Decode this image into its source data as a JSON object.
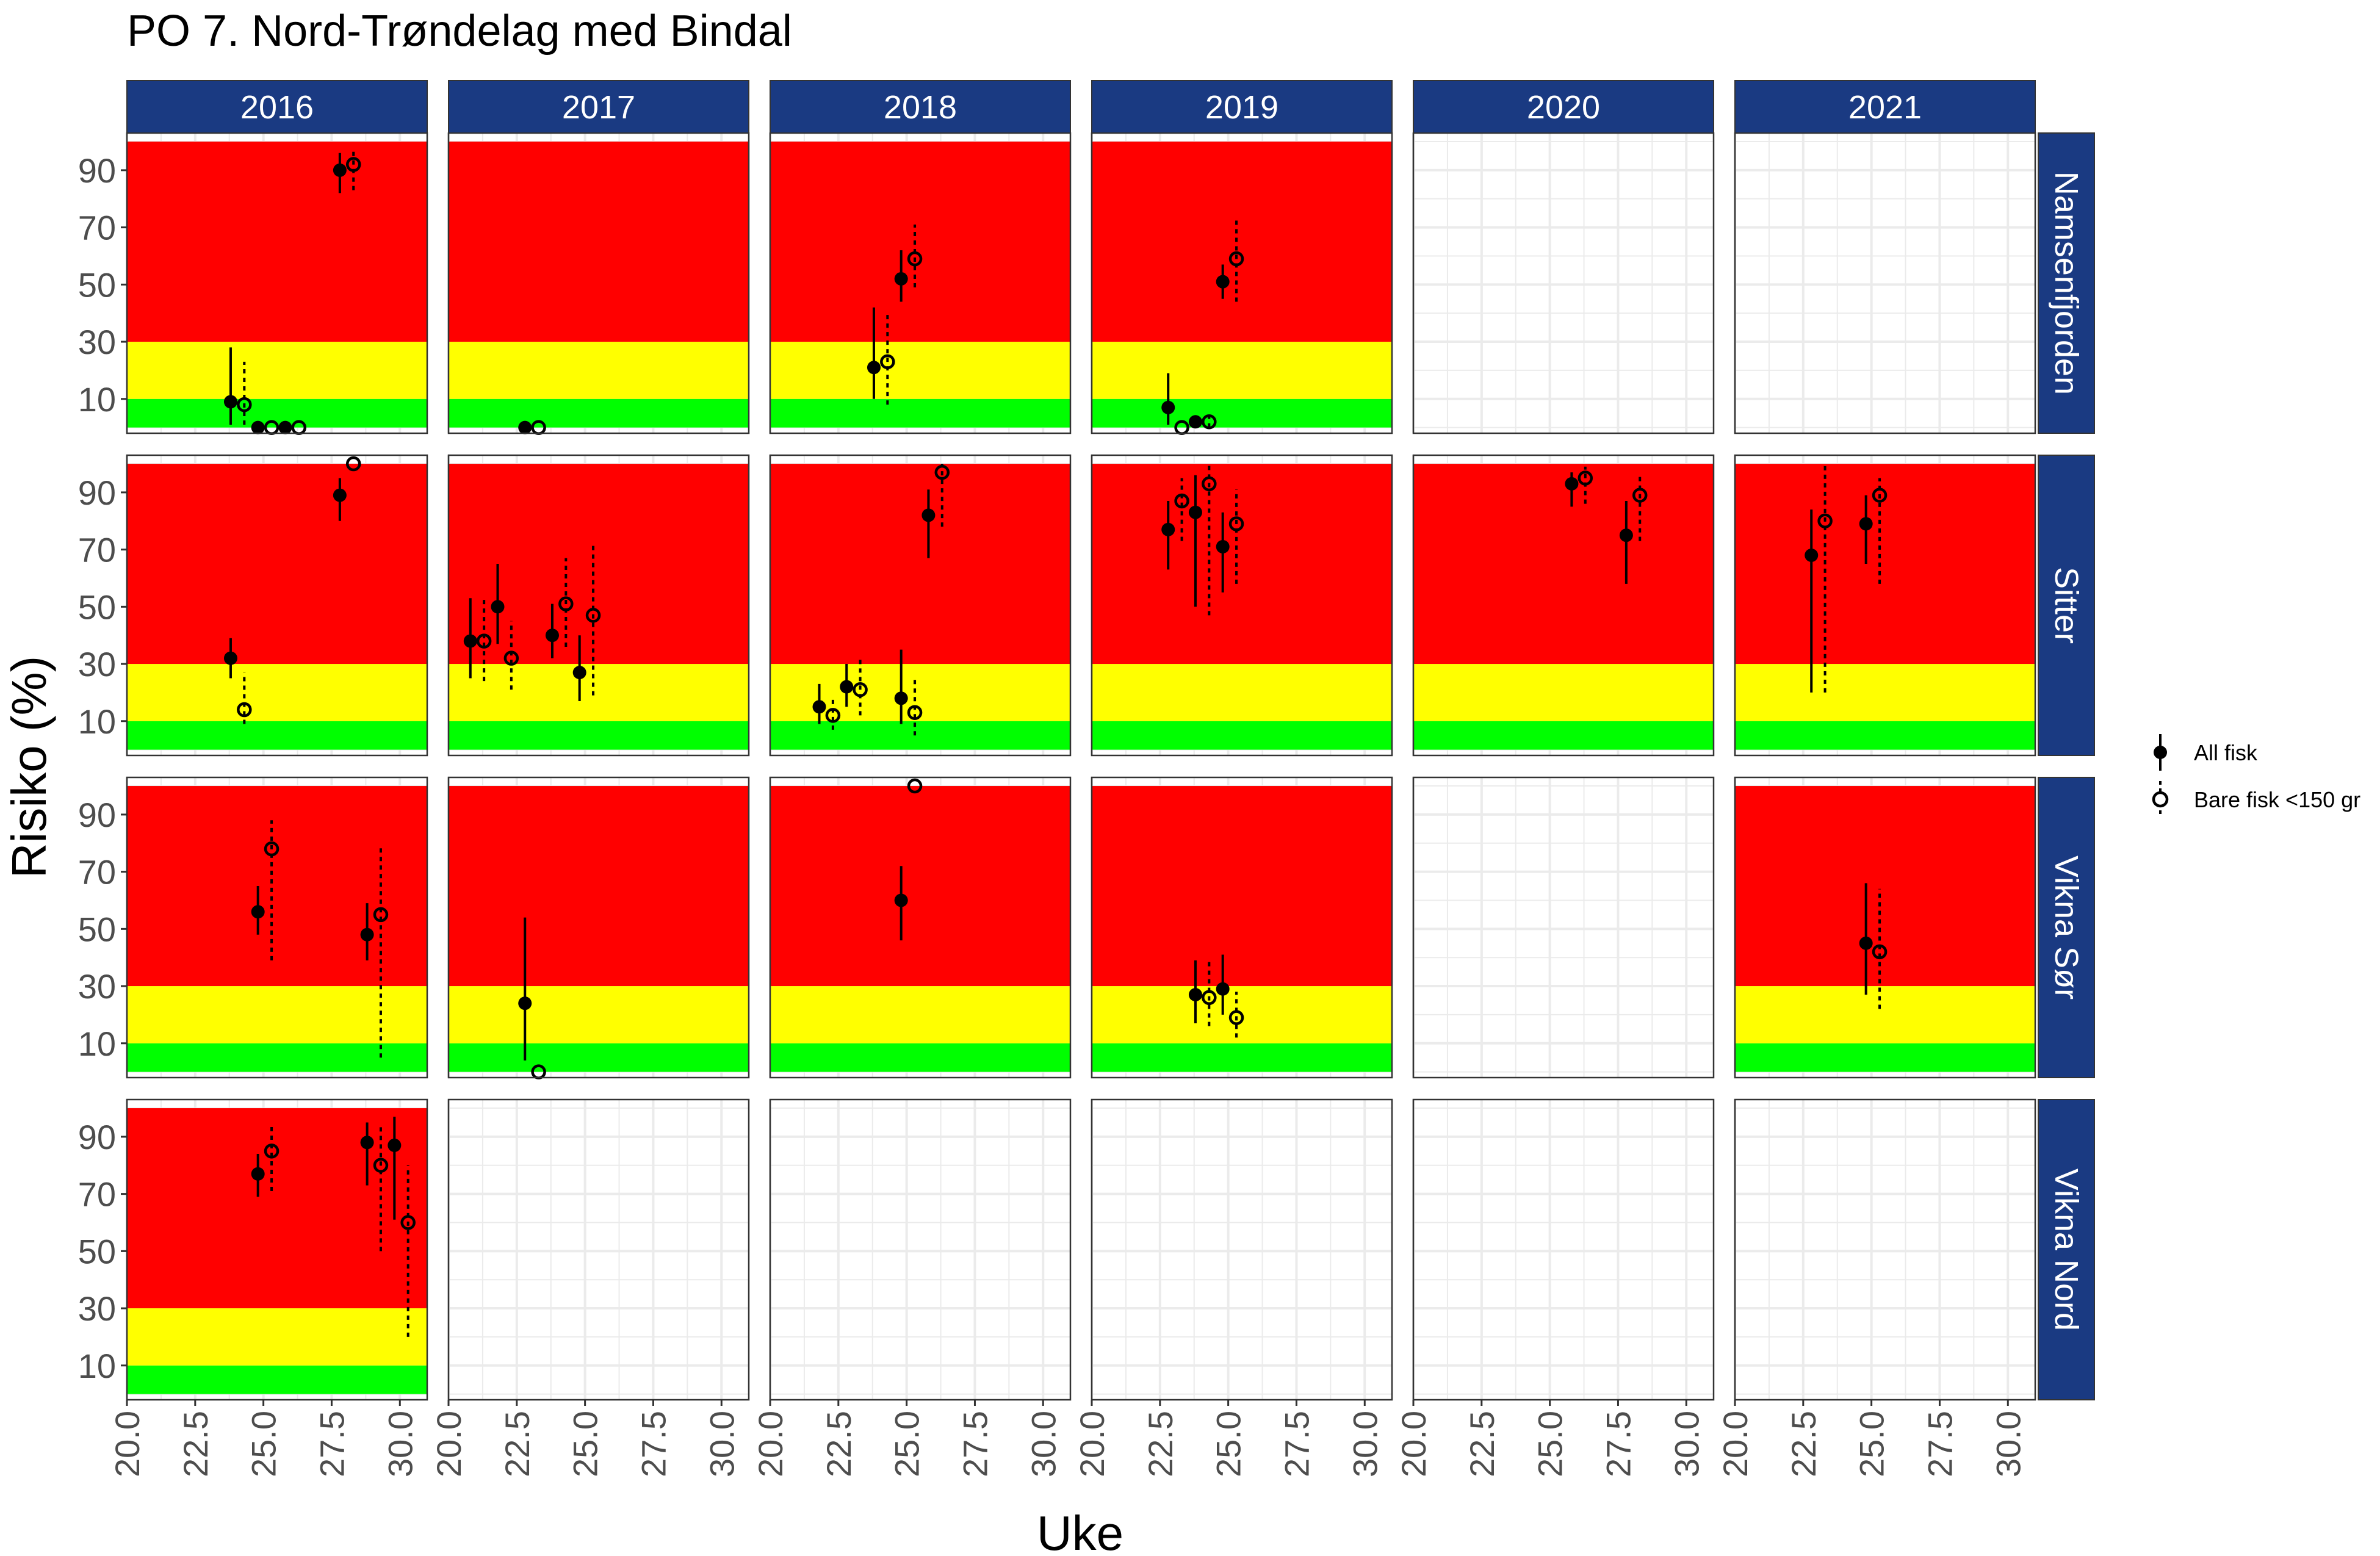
{
  "chart_data": {
    "type": "scatter",
    "title": "PO 7. Nord-Trøndelag med Bindal",
    "xlabel": "Uke",
    "ylabel": "Risiko (%)",
    "xlim": [
      20,
      31
    ],
    "ylim": [
      -2,
      103
    ],
    "x_ticks": [
      "20.0",
      "22.5",
      "25.0",
      "27.5",
      "30.0"
    ],
    "x_tick_values": [
      20,
      22.5,
      25,
      27.5,
      30
    ],
    "y_ticks": [
      "10",
      "30",
      "50",
      "70",
      "90"
    ],
    "y_tick_values": [
      10,
      30,
      50,
      70,
      90
    ],
    "years": [
      "2016",
      "2017",
      "2018",
      "2019",
      "2020",
      "2021"
    ],
    "locations": [
      "Namsenfjorden",
      "Sitter",
      "Vikna Sør",
      "Vikna Nord"
    ],
    "risk_bands": [
      {
        "name": "green",
        "from": 0,
        "to": 10,
        "color": "#00ff00"
      },
      {
        "name": "yellow",
        "from": 10,
        "to": 30,
        "color": "#ffff00"
      },
      {
        "name": "red",
        "from": 30,
        "to": 100,
        "color": "#ff0000"
      }
    ],
    "legend": {
      "position": "right",
      "entries": [
        {
          "key": "all",
          "label": "All fisk"
        },
        {
          "key": "small",
          "label": "Bare fisk <150 gr"
        }
      ]
    },
    "colors": {
      "strip_bg": "#1a3a82",
      "strip_text": "#ffffff",
      "grid": "#ebebeb",
      "panel_border": "#333333",
      "point": "#000000"
    },
    "panels": [
      {
        "year": "2016",
        "location": "Namsenfjorden",
        "bands": true,
        "points": [
          {
            "s": "all",
            "x": 23.8,
            "y": 9,
            "lo": 1,
            "hi": 28
          },
          {
            "s": "small",
            "x": 24.3,
            "y": 8,
            "lo": 1,
            "hi": 23
          },
          {
            "s": "all",
            "x": 24.8,
            "y": 0,
            "lo": 0,
            "hi": 0
          },
          {
            "s": "small",
            "x": 25.3,
            "y": 0,
            "lo": 0,
            "hi": 0
          },
          {
            "s": "all",
            "x": 25.8,
            "y": 0,
            "lo": 0,
            "hi": 0
          },
          {
            "s": "small",
            "x": 26.3,
            "y": 0,
            "lo": 0,
            "hi": 0
          },
          {
            "s": "all",
            "x": 27.8,
            "y": 90,
            "lo": 82,
            "hi": 96
          },
          {
            "s": "small",
            "x": 28.3,
            "y": 92,
            "lo": 83,
            "hi": 97
          }
        ]
      },
      {
        "year": "2017",
        "location": "Namsenfjorden",
        "bands": true,
        "points": [
          {
            "s": "all",
            "x": 22.8,
            "y": 0,
            "lo": 0,
            "hi": 0
          },
          {
            "s": "small",
            "x": 23.3,
            "y": 0,
            "lo": 0,
            "hi": 0
          }
        ]
      },
      {
        "year": "2018",
        "location": "Namsenfjorden",
        "bands": true,
        "points": [
          {
            "s": "all",
            "x": 23.8,
            "y": 21,
            "lo": 10,
            "hi": 42
          },
          {
            "s": "small",
            "x": 24.3,
            "y": 23,
            "lo": 8,
            "hi": 40
          },
          {
            "s": "all",
            "x": 24.8,
            "y": 52,
            "lo": 44,
            "hi": 62
          },
          {
            "s": "small",
            "x": 25.3,
            "y": 59,
            "lo": 49,
            "hi": 71
          }
        ]
      },
      {
        "year": "2019",
        "location": "Namsenfjorden",
        "bands": true,
        "points": [
          {
            "s": "all",
            "x": 22.8,
            "y": 7,
            "lo": 1,
            "hi": 19
          },
          {
            "s": "small",
            "x": 23.3,
            "y": 0,
            "lo": 0,
            "hi": 0
          },
          {
            "s": "all",
            "x": 23.8,
            "y": 2,
            "lo": 0,
            "hi": 4
          },
          {
            "s": "small",
            "x": 24.3,
            "y": 2,
            "lo": 0,
            "hi": 4
          },
          {
            "s": "all",
            "x": 24.8,
            "y": 51,
            "lo": 45,
            "hi": 57
          },
          {
            "s": "small",
            "x": 25.3,
            "y": 59,
            "lo": 44,
            "hi": 73
          }
        ]
      },
      {
        "year": "2020",
        "location": "Namsenfjorden",
        "bands": false,
        "points": []
      },
      {
        "year": "2021",
        "location": "Namsenfjorden",
        "bands": false,
        "points": []
      },
      {
        "year": "2016",
        "location": "Sitter",
        "bands": true,
        "points": [
          {
            "s": "all",
            "x": 23.8,
            "y": 32,
            "lo": 25,
            "hi": 39
          },
          {
            "s": "small",
            "x": 24.3,
            "y": 14,
            "lo": 9,
            "hi": 27
          },
          {
            "s": "all",
            "x": 27.8,
            "y": 89,
            "lo": 80,
            "hi": 95
          },
          {
            "s": "small",
            "x": 28.3,
            "y": 100,
            "lo": 100,
            "hi": 100
          }
        ]
      },
      {
        "year": "2017",
        "location": "Sitter",
        "bands": true,
        "points": [
          {
            "s": "all",
            "x": 20.8,
            "y": 38,
            "lo": 25,
            "hi": 53
          },
          {
            "s": "small",
            "x": 21.3,
            "y": 38,
            "lo": 24,
            "hi": 53
          },
          {
            "s": "all",
            "x": 21.8,
            "y": 50,
            "lo": 37,
            "hi": 65
          },
          {
            "s": "small",
            "x": 22.3,
            "y": 32,
            "lo": 21,
            "hi": 45
          },
          {
            "s": "all",
            "x": 23.8,
            "y": 40,
            "lo": 32,
            "hi": 51
          },
          {
            "s": "small",
            "x": 24.3,
            "y": 51,
            "lo": 36,
            "hi": 67
          },
          {
            "s": "all",
            "x": 24.8,
            "y": 27,
            "lo": 17,
            "hi": 40
          },
          {
            "s": "small",
            "x": 25.3,
            "y": 47,
            "lo": 19,
            "hi": 72
          }
        ]
      },
      {
        "year": "2018",
        "location": "Sitter",
        "bands": true,
        "points": [
          {
            "s": "all",
            "x": 21.8,
            "y": 15,
            "lo": 9,
            "hi": 23
          },
          {
            "s": "small",
            "x": 22.3,
            "y": 12,
            "lo": 7,
            "hi": 18
          },
          {
            "s": "all",
            "x": 22.8,
            "y": 22,
            "lo": 15,
            "hi": 30
          },
          {
            "s": "small",
            "x": 23.3,
            "y": 21,
            "lo": 12,
            "hi": 32
          },
          {
            "s": "all",
            "x": 24.8,
            "y": 18,
            "lo": 9,
            "hi": 35
          },
          {
            "s": "small",
            "x": 25.3,
            "y": 13,
            "lo": 5,
            "hi": 25
          },
          {
            "s": "all",
            "x": 25.8,
            "y": 82,
            "lo": 67,
            "hi": 91
          },
          {
            "s": "small",
            "x": 26.3,
            "y": 97,
            "lo": 78,
            "hi": 100
          }
        ]
      },
      {
        "year": "2019",
        "location": "Sitter",
        "bands": true,
        "points": [
          {
            "s": "all",
            "x": 22.8,
            "y": 77,
            "lo": 63,
            "hi": 87
          },
          {
            "s": "small",
            "x": 23.3,
            "y": 87,
            "lo": 73,
            "hi": 95
          },
          {
            "s": "all",
            "x": 23.8,
            "y": 83,
            "lo": 50,
            "hi": 96
          },
          {
            "s": "small",
            "x": 24.3,
            "y": 93,
            "lo": 47,
            "hi": 100
          },
          {
            "s": "all",
            "x": 24.8,
            "y": 71,
            "lo": 55,
            "hi": 83
          },
          {
            "s": "small",
            "x": 25.3,
            "y": 79,
            "lo": 58,
            "hi": 91
          }
        ]
      },
      {
        "year": "2020",
        "location": "Sitter",
        "bands": true,
        "points": [
          {
            "s": "all",
            "x": 25.8,
            "y": 93,
            "lo": 85,
            "hi": 97
          },
          {
            "s": "small",
            "x": 26.3,
            "y": 95,
            "lo": 86,
            "hi": 99
          },
          {
            "s": "all",
            "x": 27.8,
            "y": 75,
            "lo": 58,
            "hi": 87
          },
          {
            "s": "small",
            "x": 28.3,
            "y": 89,
            "lo": 73,
            "hi": 96
          }
        ]
      },
      {
        "year": "2021",
        "location": "Sitter",
        "bands": true,
        "points": [
          {
            "s": "all",
            "x": 22.8,
            "y": 68,
            "lo": 20,
            "hi": 84
          },
          {
            "s": "small",
            "x": 23.3,
            "y": 80,
            "lo": 20,
            "hi": 100
          },
          {
            "s": "all",
            "x": 24.8,
            "y": 79,
            "lo": 65,
            "hi": 89
          },
          {
            "s": "small",
            "x": 25.3,
            "y": 89,
            "lo": 58,
            "hi": 95
          }
        ]
      },
      {
        "year": "2016",
        "location": "Vikna Sør",
        "bands": true,
        "points": [
          {
            "s": "all",
            "x": 24.8,
            "y": 56,
            "lo": 48,
            "hi": 65
          },
          {
            "s": "small",
            "x": 25.3,
            "y": 78,
            "lo": 39,
            "hi": 88
          },
          {
            "s": "all",
            "x": 28.8,
            "y": 48,
            "lo": 39,
            "hi": 59
          },
          {
            "s": "small",
            "x": 29.3,
            "y": 55,
            "lo": 5,
            "hi": 79
          }
        ]
      },
      {
        "year": "2017",
        "location": "Vikna Sør",
        "bands": true,
        "points": [
          {
            "s": "all",
            "x": 22.8,
            "y": 24,
            "lo": 4,
            "hi": 54
          },
          {
            "s": "small",
            "x": 23.3,
            "y": 0,
            "lo": 0,
            "hi": 0
          }
        ]
      },
      {
        "year": "2018",
        "location": "Vikna Sør",
        "bands": true,
        "points": [
          {
            "s": "all",
            "x": 24.8,
            "y": 60,
            "lo": 46,
            "hi": 72
          },
          {
            "s": "small",
            "x": 25.3,
            "y": 100,
            "lo": 100,
            "hi": 100
          }
        ]
      },
      {
        "year": "2019",
        "location": "Vikna Sør",
        "bands": true,
        "points": [
          {
            "s": "all",
            "x": 23.8,
            "y": 27,
            "lo": 17,
            "hi": 39
          },
          {
            "s": "small",
            "x": 24.3,
            "y": 26,
            "lo": 16,
            "hi": 39
          },
          {
            "s": "all",
            "x": 24.8,
            "y": 29,
            "lo": 20,
            "hi": 41
          },
          {
            "s": "small",
            "x": 25.3,
            "y": 19,
            "lo": 12,
            "hi": 28
          }
        ]
      },
      {
        "year": "2020",
        "location": "Vikna Sør",
        "bands": false,
        "points": []
      },
      {
        "year": "2021",
        "location": "Vikna Sør",
        "bands": true,
        "points": [
          {
            "s": "all",
            "x": 24.8,
            "y": 45,
            "lo": 27,
            "hi": 66
          },
          {
            "s": "small",
            "x": 25.3,
            "y": 42,
            "lo": 22,
            "hi": 64
          }
        ]
      },
      {
        "year": "2016",
        "location": "Vikna Nord",
        "bands": true,
        "points": [
          {
            "s": "all",
            "x": 24.8,
            "y": 77,
            "lo": 69,
            "hi": 84
          },
          {
            "s": "small",
            "x": 25.3,
            "y": 85,
            "lo": 71,
            "hi": 94
          },
          {
            "s": "all",
            "x": 28.8,
            "y": 88,
            "lo": 73,
            "hi": 95
          },
          {
            "s": "small",
            "x": 29.3,
            "y": 80,
            "lo": 50,
            "hi": 94
          },
          {
            "s": "all",
            "x": 29.8,
            "y": 87,
            "lo": 61,
            "hi": 97
          },
          {
            "s": "small",
            "x": 30.3,
            "y": 60,
            "lo": 20,
            "hi": 80
          }
        ]
      },
      {
        "year": "2017",
        "location": "Vikna Nord",
        "bands": false,
        "points": []
      },
      {
        "year": "2018",
        "location": "Vikna Nord",
        "bands": false,
        "points": []
      },
      {
        "year": "2019",
        "location": "Vikna Nord",
        "bands": false,
        "points": []
      },
      {
        "year": "2020",
        "location": "Vikna Nord",
        "bands": false,
        "points": []
      },
      {
        "year": "2021",
        "location": "Vikna Nord",
        "bands": false,
        "points": []
      }
    ]
  }
}
